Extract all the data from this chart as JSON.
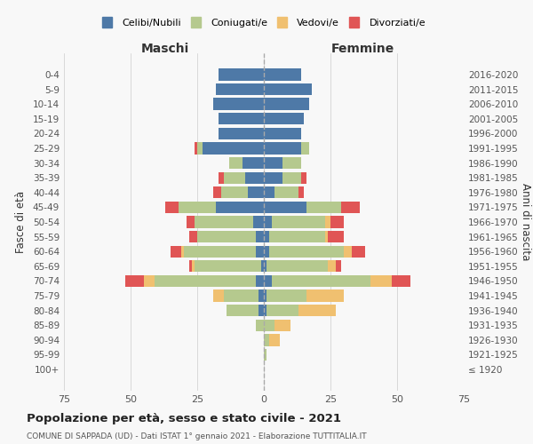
{
  "age_groups": [
    "100+",
    "95-99",
    "90-94",
    "85-89",
    "80-84",
    "75-79",
    "70-74",
    "65-69",
    "60-64",
    "55-59",
    "50-54",
    "45-49",
    "40-44",
    "35-39",
    "30-34",
    "25-29",
    "20-24",
    "15-19",
    "10-14",
    "5-9",
    "0-4"
  ],
  "birth_years": [
    "≤ 1920",
    "1921-1925",
    "1926-1930",
    "1931-1935",
    "1936-1940",
    "1941-1945",
    "1946-1950",
    "1951-1955",
    "1956-1960",
    "1961-1965",
    "1966-1970",
    "1971-1975",
    "1976-1980",
    "1981-1985",
    "1986-1990",
    "1991-1995",
    "1996-2000",
    "2001-2005",
    "2006-2010",
    "2011-2015",
    "2016-2020"
  ],
  "male": {
    "celibi": [
      0,
      0,
      0,
      0,
      2,
      2,
      3,
      1,
      3,
      3,
      4,
      18,
      6,
      7,
      8,
      23,
      17,
      17,
      19,
      18,
      17
    ],
    "coniugati": [
      0,
      0,
      0,
      3,
      12,
      13,
      38,
      25,
      27,
      22,
      22,
      14,
      10,
      8,
      5,
      2,
      0,
      0,
      0,
      0,
      0
    ],
    "vedovi": [
      0,
      0,
      0,
      0,
      0,
      4,
      4,
      1,
      1,
      0,
      0,
      0,
      0,
      0,
      0,
      0,
      0,
      0,
      0,
      0,
      0
    ],
    "divorziati": [
      0,
      0,
      0,
      0,
      0,
      0,
      7,
      1,
      4,
      3,
      3,
      5,
      3,
      2,
      0,
      1,
      0,
      0,
      0,
      0,
      0
    ]
  },
  "female": {
    "nubili": [
      0,
      0,
      0,
      0,
      1,
      1,
      3,
      1,
      2,
      2,
      3,
      16,
      4,
      7,
      7,
      14,
      14,
      15,
      17,
      18,
      14
    ],
    "coniugate": [
      0,
      1,
      2,
      4,
      12,
      15,
      37,
      23,
      28,
      21,
      20,
      13,
      9,
      7,
      7,
      3,
      0,
      0,
      0,
      0,
      0
    ],
    "vedove": [
      0,
      0,
      4,
      6,
      14,
      14,
      8,
      3,
      3,
      1,
      2,
      0,
      0,
      0,
      0,
      0,
      0,
      0,
      0,
      0,
      0
    ],
    "divorziate": [
      0,
      0,
      0,
      0,
      0,
      0,
      7,
      2,
      5,
      6,
      5,
      7,
      2,
      2,
      0,
      0,
      0,
      0,
      0,
      0,
      0
    ]
  },
  "colors": {
    "celibi": "#4e79a7",
    "coniugati": "#b5c98e",
    "vedovi": "#f0c070",
    "divorziati": "#e05555"
  },
  "title": "Popolazione per età, sesso e stato civile - 2021",
  "subtitle": "COMUNE DI SAPPADA (UD) - Dati ISTAT 1° gennaio 2021 - Elaborazione TUTTITALIA.IT",
  "xlabel_maschi": "Maschi",
  "xlabel_femmine": "Femmine",
  "ylabel_left": "Fasce di età",
  "ylabel_right": "Anni di nascita",
  "xlim": 75,
  "background_color": "#f8f8f8",
  "legend_labels": [
    "Celibi/Nubili",
    "Coniugati/e",
    "Vedovi/e",
    "Divorziati/e"
  ]
}
